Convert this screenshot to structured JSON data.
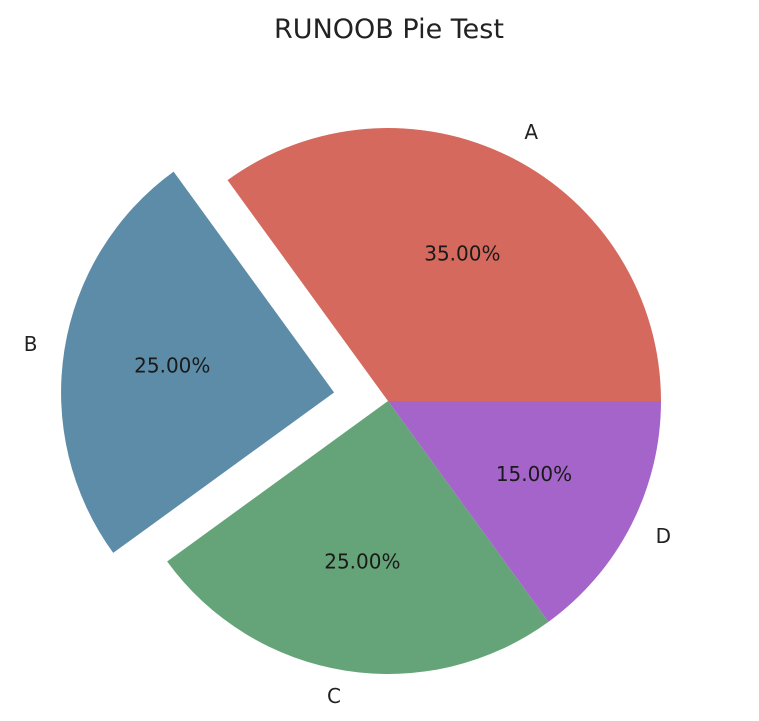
{
  "chart_data": {
    "type": "pie",
    "title": "RUNOOB Pie Test",
    "labels": [
      "A",
      "B",
      "C",
      "D"
    ],
    "values": [
      35,
      25,
      25,
      15
    ],
    "percent_labels": [
      "35.00%",
      "25.00%",
      "25.00%",
      "15.00%"
    ],
    "colors": [
      "#d5695d",
      "#5d8ca8",
      "#65a479",
      "#a564c9"
    ],
    "explode": [
      0,
      0.2,
      0,
      0
    ],
    "start_angle_deg": 0,
    "direction": "counterclockwise"
  }
}
